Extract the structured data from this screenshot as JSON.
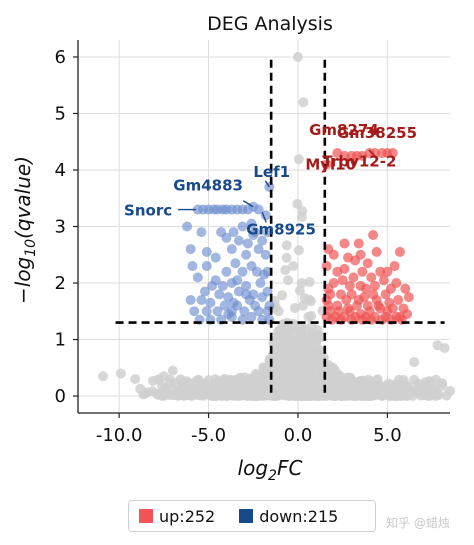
{
  "chart_data": {
    "type": "scatter",
    "title": "DEG Analysis",
    "xlabel": "log2FC",
    "ylabel": "-log10(qvalue)",
    "xlim": [
      -12.3,
      8.5
    ],
    "ylim": [
      -0.3,
      6.3
    ],
    "xticks": [
      -10.0,
      -5.0,
      0.0,
      5.0
    ],
    "xtick_labels": [
      "-10.0",
      "-5.0",
      "0.0",
      "5.0"
    ],
    "yticks": [
      0,
      1,
      2,
      3,
      4,
      5,
      6
    ],
    "ytick_labels": [
      "0",
      "1",
      "2",
      "3",
      "4",
      "5",
      "6"
    ],
    "grid": true,
    "thresholds": {
      "log2fc": [
        -1.5,
        1.5
      ],
      "qvalue_line": 1.3
    },
    "colors": {
      "up": "#f05454",
      "down": "#6f8fcf",
      "ns": "#d0d0d0",
      "up_label": "#a51b1b",
      "down_label": "#174a8b"
    },
    "legend": {
      "placement": "bottom-center",
      "items": [
        {
          "label": "up:252",
          "color": "#f05454"
        },
        {
          "label": "down:215",
          "color": "#174a8b"
        }
      ]
    },
    "labeled_points": [
      {
        "gene": "Gm8274",
        "x": 2.3,
        "y": 4.3,
        "group": "up"
      },
      {
        "gene": "Gm38255",
        "x": 4.3,
        "y": 4.25,
        "group": "up"
      },
      {
        "gene": "Myl10",
        "x": 2.2,
        "y": 4.15,
        "group": "up"
      },
      {
        "gene": "Trbv12-2",
        "x": 3.6,
        "y": 4.2,
        "group": "up"
      },
      {
        "gene": "Lef1",
        "x": -1.6,
        "y": 3.7,
        "group": "down"
      },
      {
        "gene": "Gm4883",
        "x": -2.5,
        "y": 3.35,
        "group": "down"
      },
      {
        "gene": "Snorc",
        "x": -5.7,
        "y": 3.3,
        "group": "down"
      },
      {
        "gene": "Gm8925",
        "x": -2.0,
        "y": 3.25,
        "group": "down"
      }
    ],
    "up_points": [
      [
        1.6,
        4.1
      ],
      [
        2.2,
        4.3
      ],
      [
        2.6,
        4.25
      ],
      [
        3.0,
        4.25
      ],
      [
        3.3,
        4.25
      ],
      [
        3.6,
        4.25
      ],
      [
        4.0,
        4.3
      ],
      [
        4.3,
        4.3
      ],
      [
        4.7,
        4.3
      ],
      [
        5.0,
        4.3
      ],
      [
        5.3,
        4.3
      ],
      [
        2.6,
        2.7
      ],
      [
        2.8,
        2.45
      ],
      [
        3.2,
        2.4
      ],
      [
        3.4,
        2.7
      ],
      [
        4.2,
        2.85
      ],
      [
        4.4,
        2.55
      ],
      [
        5.7,
        2.55
      ],
      [
        2.6,
        2.25
      ],
      [
        3.9,
        2.35
      ],
      [
        4.6,
        2.2
      ],
      [
        2.2,
        2.2
      ],
      [
        3.1,
        2.1
      ],
      [
        3.6,
        2.2
      ],
      [
        4.1,
        2.1
      ],
      [
        5.0,
        2.2
      ],
      [
        5.4,
        2.3
      ],
      [
        2.0,
        2.0
      ],
      [
        2.9,
        1.95
      ],
      [
        3.5,
        1.95
      ],
      [
        4.3,
        1.95
      ],
      [
        5.2,
        1.9
      ],
      [
        6.2,
        1.75
      ],
      [
        1.8,
        1.8
      ],
      [
        2.4,
        1.8
      ],
      [
        3.0,
        1.8
      ],
      [
        3.7,
        1.75
      ],
      [
        4.4,
        1.7
      ],
      [
        4.9,
        1.8
      ],
      [
        5.6,
        1.7
      ],
      [
        1.7,
        1.6
      ],
      [
        2.2,
        1.6
      ],
      [
        2.8,
        1.55
      ],
      [
        3.3,
        1.6
      ],
      [
        3.9,
        1.6
      ],
      [
        4.6,
        1.55
      ],
      [
        5.3,
        1.55
      ],
      [
        5.9,
        1.55
      ],
      [
        1.6,
        1.4
      ],
      [
        2.1,
        1.4
      ],
      [
        2.6,
        1.4
      ],
      [
        3.2,
        1.4
      ],
      [
        3.8,
        1.4
      ],
      [
        4.3,
        1.4
      ],
      [
        4.9,
        1.4
      ],
      [
        5.5,
        1.4
      ],
      [
        6.1,
        1.45
      ],
      [
        1.9,
        1.35
      ],
      [
        2.4,
        1.35
      ],
      [
        3.0,
        1.35
      ],
      [
        3.6,
        1.35
      ],
      [
        4.1,
        1.35
      ],
      [
        4.7,
        1.35
      ],
      [
        5.2,
        1.35
      ],
      [
        5.8,
        1.35
      ],
      [
        1.6,
        2.3
      ],
      [
        1.7,
        2.6
      ],
      [
        1.7,
        1.9
      ],
      [
        1.6,
        1.7
      ],
      [
        2.0,
        2.5
      ],
      [
        2.5,
        2.05
      ],
      [
        3.5,
        2.5
      ],
      [
        3.8,
        1.9
      ],
      [
        4.2,
        1.8
      ],
      [
        4.8,
        2.05
      ],
      [
        5.1,
        1.65
      ],
      [
        5.5,
        2.0
      ],
      [
        6.0,
        1.9
      ],
      [
        2.7,
        1.7
      ],
      [
        3.4,
        1.7
      ],
      [
        4.0,
        1.5
      ],
      [
        4.5,
        1.6
      ],
      [
        1.8,
        1.5
      ],
      [
        2.3,
        1.5
      ],
      [
        2.9,
        1.5
      ],
      [
        3.5,
        1.45
      ],
      [
        5.0,
        1.5
      ],
      [
        5.7,
        1.4
      ]
    ],
    "down_points": [
      [
        -5.6,
        3.3
      ],
      [
        -5.3,
        3.3
      ],
      [
        -5.0,
        3.3
      ],
      [
        -4.7,
        3.3
      ],
      [
        -4.5,
        3.3
      ],
      [
        -4.2,
        3.3
      ],
      [
        -4.0,
        3.3
      ],
      [
        -3.7,
        3.3
      ],
      [
        -3.4,
        3.3
      ],
      [
        -3.1,
        3.3
      ],
      [
        -2.8,
        3.3
      ],
      [
        -2.5,
        3.35
      ],
      [
        -2.2,
        3.3
      ],
      [
        -1.6,
        3.7
      ],
      [
        -6.2,
        3.0
      ],
      [
        -5.4,
        2.9
      ],
      [
        -4.3,
        2.9
      ],
      [
        -3.6,
        2.9
      ],
      [
        -3.1,
        3.0
      ],
      [
        -2.5,
        2.85
      ],
      [
        -4.0,
        2.8
      ],
      [
        -3.3,
        2.75
      ],
      [
        -2.8,
        2.7
      ],
      [
        -1.8,
        3.2
      ],
      [
        -1.7,
        2.9
      ],
      [
        -6.0,
        2.6
      ],
      [
        -5.1,
        2.55
      ],
      [
        -3.7,
        2.6
      ],
      [
        -2.9,
        2.5
      ],
      [
        -2.2,
        2.6
      ],
      [
        -1.8,
        2.5
      ],
      [
        -5.9,
        2.3
      ],
      [
        -5.1,
        2.3
      ],
      [
        -4.0,
        2.2
      ],
      [
        -3.1,
        2.2
      ],
      [
        -2.3,
        2.2
      ],
      [
        -1.7,
        2.2
      ],
      [
        -5.6,
        2.1
      ],
      [
        -4.6,
        2.05
      ],
      [
        -3.7,
        2.0
      ],
      [
        -2.9,
        1.95
      ],
      [
        -2.1,
        2.0
      ],
      [
        -4.8,
        1.95
      ],
      [
        -3.3,
        1.85
      ],
      [
        -2.5,
        1.8
      ],
      [
        -1.7,
        1.85
      ],
      [
        -4.4,
        1.8
      ],
      [
        -3.9,
        1.75
      ],
      [
        -2.7,
        1.7
      ],
      [
        -6.0,
        1.7
      ],
      [
        -5.4,
        1.7
      ],
      [
        -4.9,
        1.65
      ],
      [
        -4.1,
        1.6
      ],
      [
        -3.4,
        1.6
      ],
      [
        -2.4,
        1.6
      ],
      [
        -1.6,
        1.6
      ],
      [
        -5.8,
        1.5
      ],
      [
        -5.1,
        1.5
      ],
      [
        -4.5,
        1.5
      ],
      [
        -3.7,
        1.5
      ],
      [
        -3.0,
        1.5
      ],
      [
        -2.2,
        1.5
      ],
      [
        -1.7,
        1.5
      ],
      [
        -5.5,
        1.35
      ],
      [
        -4.9,
        1.35
      ],
      [
        -4.3,
        1.35
      ],
      [
        -3.7,
        1.4
      ],
      [
        -3.1,
        1.35
      ],
      [
        -2.6,
        1.4
      ],
      [
        -2.0,
        1.35
      ],
      [
        -1.6,
        1.35
      ],
      [
        -2.6,
        3.05
      ],
      [
        -2.4,
        2.9
      ],
      [
        -2.0,
        2.75
      ],
      [
        -3.5,
        2.35
      ],
      [
        -4.6,
        2.45
      ],
      [
        -2.6,
        2.3
      ],
      [
        -3.4,
        2.05
      ],
      [
        -1.9,
        2.15
      ],
      [
        -4.2,
        1.95
      ],
      [
        -2.0,
        1.75
      ],
      [
        -3.6,
        1.65
      ],
      [
        -5.2,
        1.85
      ],
      [
        -2.9,
        1.8
      ],
      [
        -3.9,
        1.45
      ]
    ]
  },
  "watermark": "知乎 @蜡烛"
}
